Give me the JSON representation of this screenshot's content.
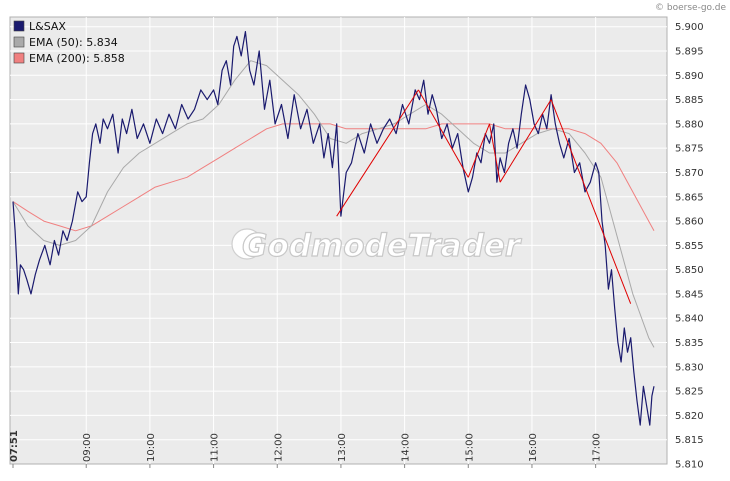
{
  "credit": "© boerse-go.de",
  "watermark": "GodmodeTrader",
  "chart_data": {
    "type": "line",
    "title": "",
    "xlabel": "",
    "ylabel": "",
    "ylim": [
      5.81,
      5.902
    ],
    "xlim": [
      "07:51",
      "17:55"
    ],
    "grid": true,
    "legend_position": "top-left",
    "y_ticks": [
      "5.810",
      "5.815",
      "5.820",
      "5.825",
      "5.830",
      "5.835",
      "5.840",
      "5.845",
      "5.850",
      "5.855",
      "5.860",
      "5.865",
      "5.870",
      "5.875",
      "5.880",
      "5.885",
      "5.890",
      "5.895",
      "5.900"
    ],
    "x_ticks": [
      "07:51",
      "09:00",
      "10:00",
      "11:00",
      "12:00",
      "13:00",
      "14:00",
      "15:00",
      "16:00",
      "17:00"
    ],
    "legend": [
      {
        "label": "L&SAX",
        "color": "#1a1a6e"
      },
      {
        "label": "EMA (50): 5.834",
        "color": "#a9a9a9"
      },
      {
        "label": "EMA (200): 5.858",
        "color": "#f08080"
      }
    ],
    "series": [
      {
        "name": "L&SAX",
        "color": "#1a1a6e",
        "x": [
          "07:51",
          "07:53",
          "07:56",
          "07:58",
          "08:01",
          "08:04",
          "08:08",
          "08:12",
          "08:16",
          "08:21",
          "08:26",
          "08:30",
          "08:34",
          "08:38",
          "08:42",
          "08:47",
          "08:52",
          "08:56",
          "09:00",
          "09:03",
          "09:06",
          "09:09",
          "09:13",
          "09:16",
          "09:20",
          "09:25",
          "09:30",
          "09:34",
          "09:38",
          "09:43",
          "09:48",
          "09:54",
          "10:00",
          "10:06",
          "10:12",
          "10:18",
          "10:24",
          "10:30",
          "10:36",
          "10:42",
          "10:48",
          "10:54",
          "11:00",
          "11:04",
          "11:08",
          "11:12",
          "11:16",
          "11:19",
          "11:22",
          "11:26",
          "11:30",
          "11:34",
          "11:38",
          "11:43",
          "11:48",
          "11:53",
          "11:58",
          "12:04",
          "12:10",
          "12:16",
          "12:22",
          "12:28",
          "12:34",
          "12:40",
          "12:44",
          "12:48",
          "12:52",
          "12:56",
          "13:00",
          "13:05",
          "13:10",
          "13:16",
          "13:22",
          "13:28",
          "13:34",
          "13:40",
          "13:46",
          "13:52",
          "13:58",
          "14:04",
          "14:10",
          "14:14",
          "14:18",
          "14:22",
          "14:26",
          "14:30",
          "14:35",
          "14:40",
          "14:45",
          "14:50",
          "14:55",
          "15:00",
          "15:04",
          "15:08",
          "15:12",
          "15:16",
          "15:20",
          "15:24",
          "15:27",
          "15:30",
          "15:34",
          "15:38",
          "15:42",
          "15:46",
          "15:50",
          "15:54",
          "15:58",
          "16:02",
          "16:06",
          "16:10",
          "16:14",
          "16:18",
          "16:22",
          "16:26",
          "16:30",
          "16:35",
          "16:40",
          "16:45",
          "16:50",
          "16:55",
          "17:00",
          "17:03",
          "17:06",
          "17:09",
          "17:12",
          "17:15",
          "17:18",
          "17:21",
          "17:24",
          "17:27",
          "17:30",
          "17:33",
          "17:36",
          "17:39",
          "17:42",
          "17:45",
          "17:48",
          "17:51",
          "17:53",
          "17:55"
        ],
        "values": [
          5.864,
          5.858,
          5.845,
          5.851,
          5.85,
          5.848,
          5.845,
          5.849,
          5.852,
          5.855,
          5.851,
          5.856,
          5.853,
          5.858,
          5.856,
          5.86,
          5.866,
          5.864,
          5.865,
          5.872,
          5.878,
          5.88,
          5.876,
          5.881,
          5.879,
          5.882,
          5.874,
          5.881,
          5.878,
          5.883,
          5.877,
          5.88,
          5.876,
          5.881,
          5.878,
          5.882,
          5.879,
          5.884,
          5.881,
          5.883,
          5.887,
          5.885,
          5.887,
          5.884,
          5.891,
          5.893,
          5.888,
          5.896,
          5.898,
          5.894,
          5.899,
          5.891,
          5.888,
          5.895,
          5.883,
          5.889,
          5.88,
          5.884,
          5.877,
          5.886,
          5.879,
          5.883,
          5.876,
          5.88,
          5.873,
          5.878,
          5.871,
          5.88,
          5.861,
          5.87,
          5.872,
          5.878,
          5.874,
          5.88,
          5.876,
          5.879,
          5.881,
          5.878,
          5.884,
          5.88,
          5.887,
          5.885,
          5.889,
          5.882,
          5.886,
          5.883,
          5.877,
          5.88,
          5.875,
          5.878,
          5.871,
          5.866,
          5.869,
          5.874,
          5.872,
          5.878,
          5.876,
          5.88,
          5.868,
          5.873,
          5.87,
          5.876,
          5.879,
          5.875,
          5.882,
          5.888,
          5.885,
          5.88,
          5.878,
          5.882,
          5.879,
          5.886,
          5.88,
          5.876,
          5.873,
          5.877,
          5.87,
          5.872,
          5.866,
          5.868,
          5.872,
          5.87,
          5.86,
          5.855,
          5.846,
          5.85,
          5.842,
          5.835,
          5.831,
          5.838,
          5.833,
          5.836,
          5.829,
          5.823,
          5.818,
          5.826,
          5.822,
          5.818,
          5.824,
          5.826
        ]
      },
      {
        "name": "EMA (50): 5.834",
        "color": "#a9a9a9",
        "x": [
          "07:51",
          "08:05",
          "08:20",
          "08:35",
          "08:50",
          "09:05",
          "09:20",
          "09:35",
          "09:50",
          "10:05",
          "10:20",
          "10:35",
          "10:50",
          "11:05",
          "11:20",
          "11:35",
          "11:50",
          "12:05",
          "12:20",
          "12:35",
          "12:50",
          "13:05",
          "13:20",
          "13:35",
          "13:50",
          "14:05",
          "14:20",
          "14:35",
          "14:50",
          "15:05",
          "15:20",
          "15:35",
          "15:50",
          "16:05",
          "16:20",
          "16:35",
          "16:50",
          "17:05",
          "17:20",
          "17:35",
          "17:50",
          "17:55"
        ],
        "values": [
          5.864,
          5.859,
          5.856,
          5.855,
          5.856,
          5.859,
          5.866,
          5.871,
          5.874,
          5.876,
          5.878,
          5.88,
          5.881,
          5.884,
          5.889,
          5.893,
          5.892,
          5.889,
          5.886,
          5.882,
          5.877,
          5.876,
          5.878,
          5.879,
          5.88,
          5.882,
          5.884,
          5.882,
          5.879,
          5.876,
          5.874,
          5.874,
          5.876,
          5.878,
          5.879,
          5.878,
          5.874,
          5.869,
          5.857,
          5.845,
          5.836,
          5.834
        ]
      },
      {
        "name": "EMA (200): 5.858",
        "color": "#f08080",
        "x": [
          "07:51",
          "08:05",
          "08:20",
          "08:35",
          "08:50",
          "09:05",
          "09:20",
          "09:35",
          "09:50",
          "10:05",
          "10:20",
          "10:35",
          "10:50",
          "11:05",
          "11:20",
          "11:35",
          "11:50",
          "12:05",
          "12:20",
          "12:35",
          "12:50",
          "13:05",
          "13:20",
          "13:35",
          "13:50",
          "14:05",
          "14:20",
          "14:35",
          "14:50",
          "15:05",
          "15:20",
          "15:35",
          "15:50",
          "16:05",
          "16:20",
          "16:35",
          "16:50",
          "17:05",
          "17:20",
          "17:35",
          "17:50",
          "17:55"
        ],
        "values": [
          5.864,
          5.862,
          5.86,
          5.859,
          5.858,
          5.859,
          5.861,
          5.863,
          5.865,
          5.867,
          5.868,
          5.869,
          5.871,
          5.873,
          5.875,
          5.877,
          5.879,
          5.88,
          5.88,
          5.88,
          5.88,
          5.879,
          5.879,
          5.879,
          5.879,
          5.879,
          5.879,
          5.88,
          5.88,
          5.88,
          5.88,
          5.879,
          5.879,
          5.879,
          5.879,
          5.879,
          5.878,
          5.876,
          5.872,
          5.866,
          5.86,
          5.858
        ]
      }
    ],
    "trend_lines": [
      {
        "x": [
          "12:56",
          "14:13"
        ],
        "y": [
          5.861,
          5.887
        ],
        "color": "#e00000"
      },
      {
        "x": [
          "14:13",
          "15:00"
        ],
        "y": [
          5.887,
          5.869
        ],
        "color": "#e00000"
      },
      {
        "x": [
          "15:00",
          "15:20"
        ],
        "y": [
          5.869,
          5.88
        ],
        "color": "#e00000"
      },
      {
        "x": [
          "15:20",
          "15:30"
        ],
        "y": [
          5.88,
          5.868
        ],
        "color": "#e00000"
      },
      {
        "x": [
          "15:30",
          "16:18"
        ],
        "y": [
          5.868,
          5.885
        ],
        "color": "#e00000"
      },
      {
        "x": [
          "16:18",
          "17:33"
        ],
        "y": [
          5.885,
          5.843
        ],
        "color": "#e00000"
      }
    ]
  }
}
